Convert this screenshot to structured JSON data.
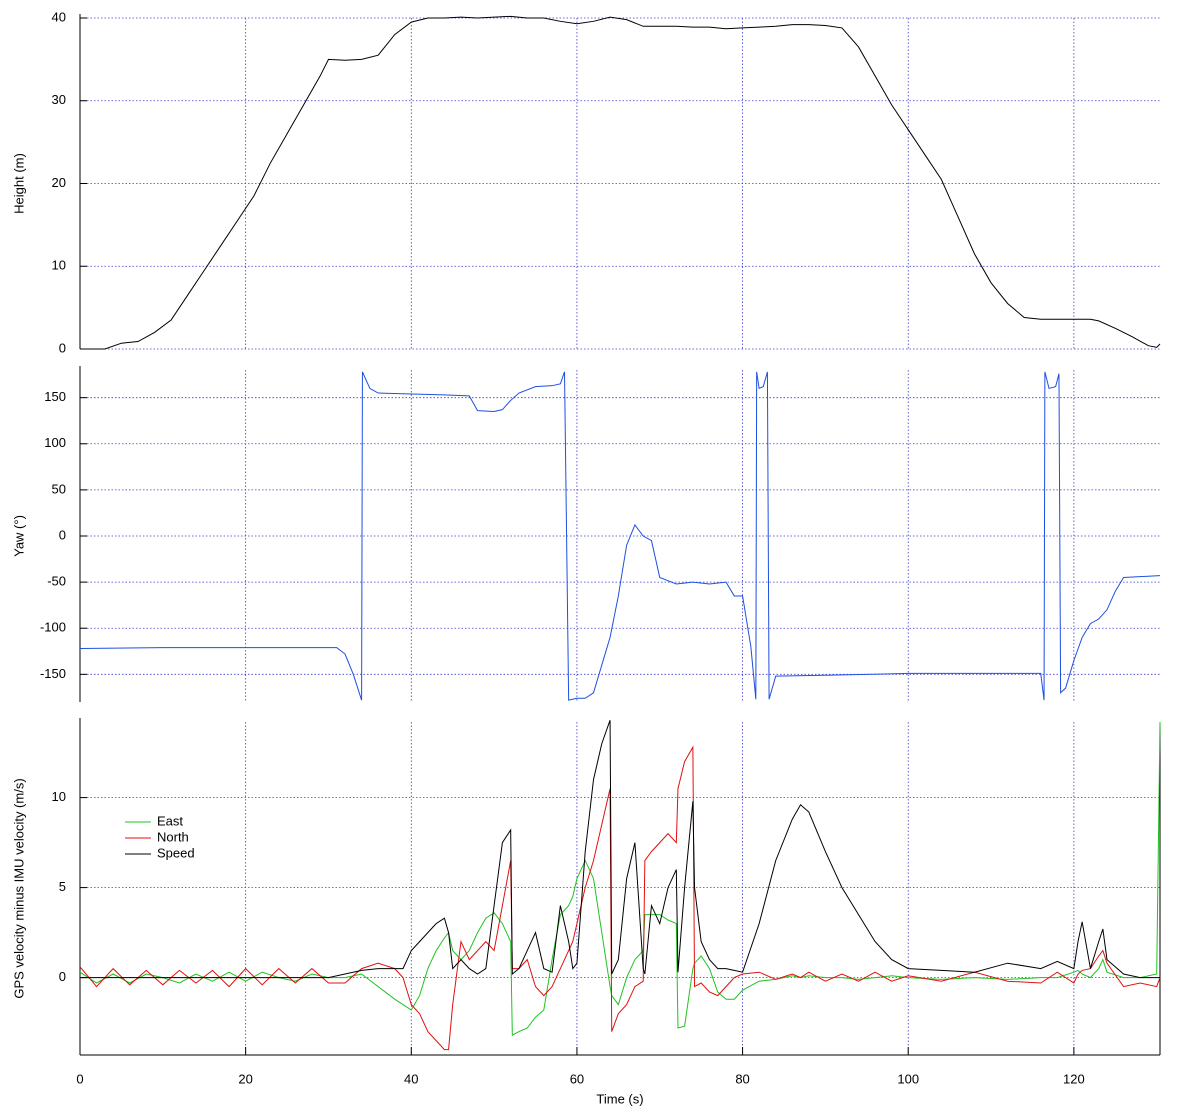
{
  "chart_data": [
    {
      "type": "line",
      "ylabel": "Height (m)",
      "x": [
        0,
        3,
        5,
        7,
        9,
        11,
        13,
        15,
        17,
        19,
        21,
        23,
        25,
        27,
        29,
        30,
        32,
        34,
        36,
        38,
        40,
        42,
        44,
        46,
        48,
        50,
        52,
        54,
        56,
        58,
        60,
        62,
        64,
        66,
        68,
        70,
        72,
        74,
        76,
        78,
        80,
        82,
        84,
        86,
        88,
        90,
        92,
        94,
        96,
        98,
        100,
        102,
        104,
        106,
        108,
        110,
        112,
        114,
        116,
        118,
        120,
        122,
        123,
        125,
        127,
        129,
        130,
        130.4
      ],
      "series": [
        {
          "color": "#000000",
          "values": [
            0,
            0,
            0.7,
            0.9,
            2,
            3.5,
            6.5,
            9.5,
            12.5,
            15.5,
            18.5,
            22.5,
            26,
            29.5,
            33,
            35,
            34.9,
            35,
            35.5,
            38,
            39.5,
            40,
            40,
            40.1,
            40,
            40.1,
            40.2,
            40,
            40,
            39.6,
            39.3,
            39.6,
            40.1,
            39.8,
            39,
            39,
            39,
            38.9,
            38.9,
            38.7,
            38.8,
            38.9,
            39,
            39.2,
            39.2,
            39.1,
            38.8,
            36.5,
            33,
            29.5,
            26.5,
            23.5,
            20.5,
            16,
            11.5,
            8,
            5.5,
            3.8,
            3.6,
            3.6,
            3.6,
            3.6,
            3.4,
            2.5,
            1.5,
            0.4,
            0.2,
            0.6
          ]
        }
      ],
      "xlim": [
        0,
        130.4
      ],
      "xticks": [
        0,
        20,
        40,
        60,
        80,
        100,
        120
      ],
      "ylim": [
        0,
        40
      ],
      "yticks": [
        0,
        10,
        20,
        30,
        40
      ],
      "grid": true
    },
    {
      "type": "line",
      "ylabel": "Yaw (°)",
      "x": [
        0,
        10,
        20,
        31,
        32,
        33,
        34,
        34.1,
        35,
        36,
        40,
        44,
        47,
        48,
        50,
        51,
        52,
        53,
        55,
        57,
        58,
        58.5,
        59,
        60,
        61,
        62,
        64,
        65,
        66,
        67,
        68,
        69,
        70,
        72,
        74,
        76,
        78,
        79,
        80,
        81,
        81.6,
        81.7,
        82,
        82.5,
        83,
        83.2,
        84,
        90,
        100,
        110,
        116,
        116.4,
        116.5,
        117,
        117.8,
        118.2,
        118.4,
        119,
        120,
        121,
        122,
        123,
        124,
        125,
        126,
        128,
        130.4
      ],
      "series": [
        {
          "color": "#1f4fe0",
          "values": [
            -122,
            -121,
            -121,
            -121,
            -128,
            -150,
            -178,
            178,
            160,
            155,
            154,
            153,
            152,
            136,
            135,
            137,
            147,
            155,
            162,
            163,
            165,
            178,
            -178,
            -176,
            -176,
            -170,
            -110,
            -65,
            -10,
            12,
            0,
            -5,
            -45,
            -52,
            -50,
            -52,
            -50,
            -65,
            -65,
            -120,
            -177,
            178,
            160,
            162,
            178,
            -177,
            -152,
            -151,
            -149,
            -149,
            -149,
            -178,
            178,
            160,
            162,
            176,
            -170,
            -165,
            -135,
            -110,
            -95,
            -90,
            -80,
            -60,
            -45,
            -44,
            -43
          ]
        }
      ],
      "xlim": [
        0,
        130.4
      ],
      "xticks": [
        0,
        20,
        40,
        60,
        80,
        100,
        120
      ],
      "ylim": [
        -180,
        180
      ],
      "yticks": [
        -150,
        -100,
        -50,
        0,
        50,
        100,
        150
      ],
      "grid": true
    },
    {
      "type": "line",
      "ylabel": "GPS velocity minus IMU velocity (m/s)",
      "xlabel": "Time (s)",
      "x": [
        0,
        2,
        4,
        6,
        8,
        10,
        12,
        14,
        16,
        18,
        20,
        22,
        24,
        26,
        28,
        30,
        32,
        34,
        36,
        38,
        39,
        40,
        41,
        42,
        43,
        44,
        44.5,
        45,
        46,
        47,
        48,
        49,
        50,
        51,
        52,
        52.2,
        53,
        54,
        55,
        56,
        57,
        58,
        59,
        59.5,
        60,
        61,
        62,
        63,
        64,
        64.2,
        65,
        66,
        67,
        68,
        68.2,
        69,
        70,
        71,
        72,
        72.2,
        73,
        74,
        74.2,
        75,
        76,
        77,
        78,
        79,
        80,
        82,
        84,
        86,
        87,
        88,
        90,
        92,
        94,
        96,
        98,
        100,
        104,
        108,
        112,
        116,
        118,
        120,
        120.5,
        121,
        122,
        123,
        123.5,
        124,
        126,
        128,
        130,
        130.4
      ],
      "series": [
        {
          "name": "East",
          "color": "#1fc21f",
          "values": [
            0.3,
            -0.3,
            0.2,
            -0.3,
            0.2,
            0,
            -0.3,
            0.2,
            -0.2,
            0.3,
            -0.2,
            0.3,
            0,
            -0.2,
            0.2,
            0,
            0,
            0.2,
            -0.5,
            -1.2,
            -1.5,
            -1.8,
            -1,
            0.5,
            1.5,
            2.2,
            2.5,
            1.5,
            1,
            1.5,
            2.5,
            3.3,
            3.6,
            3,
            2,
            -3.2,
            -3,
            -2.8,
            -2.2,
            -1.8,
            1,
            3.5,
            4,
            4.5,
            5.5,
            6.5,
            5.5,
            2.5,
            -0.5,
            -1,
            -1.5,
            0,
            1,
            1.5,
            3.5,
            3.5,
            3.5,
            3.2,
            3,
            -2.8,
            -2.7,
            0.5,
            0.8,
            1.2,
            0.5,
            -0.8,
            -1.2,
            -1.2,
            -0.7,
            -0.2,
            -0.1,
            0.1,
            0,
            0.1,
            0,
            0,
            -0.1,
            0,
            0.1,
            0,
            -0.1,
            0,
            -0.1,
            0,
            0,
            0.3,
            0.4,
            0.2,
            0,
            0.5,
            1,
            0.3,
            0,
            0,
            0.2,
            14.2
          ]
        },
        {
          "name": "North",
          "color": "#e01010",
          "values": [
            0.6,
            -0.5,
            0.5,
            -0.4,
            0.4,
            -0.4,
            0.4,
            -0.3,
            0.4,
            -0.5,
            0.5,
            -0.4,
            0.5,
            -0.3,
            0.5,
            -0.3,
            -0.3,
            0.5,
            0.8,
            0.5,
            0,
            -1.5,
            -2,
            -3,
            -3.5,
            -4,
            -4,
            -1.5,
            2,
            1,
            1.5,
            2,
            1.5,
            4,
            6.5,
            0.5,
            0.5,
            1,
            -0.5,
            -1,
            -0.5,
            0.5,
            1.5,
            2,
            3,
            5,
            6.5,
            8.5,
            10.5,
            -3,
            -2,
            -1.5,
            -0.5,
            -0.2,
            6.5,
            7,
            7.5,
            8,
            7.5,
            10.5,
            12,
            12.8,
            -0.5,
            -0.3,
            -0.8,
            -1,
            -0.5,
            0,
            0.2,
            0.3,
            -0.1,
            0.2,
            0,
            0.3,
            -0.2,
            0.2,
            -0.2,
            0.3,
            -0.2,
            0.1,
            -0.2,
            0.3,
            -0.2,
            -0.3,
            0.3,
            -0.3,
            0.2,
            0.4,
            0.5,
            1.2,
            1.5,
            0.8,
            -0.5,
            -0.3,
            -0.5,
            0
          ]
        },
        {
          "name": "Speed",
          "color": "#000000",
          "values": [
            0,
            0,
            0,
            0,
            0,
            0,
            0,
            0,
            0,
            0,
            0,
            0,
            0,
            0,
            0,
            0,
            0.2,
            0.4,
            0.5,
            0.5,
            0.5,
            1.5,
            2,
            2.5,
            3,
            3.3,
            2.5,
            0.5,
            1,
            0.5,
            0.2,
            0.5,
            4,
            7.5,
            8.2,
            0.2,
            0.5,
            1.5,
            2.5,
            0.5,
            0.3,
            4,
            2,
            0.5,
            0.8,
            7,
            11,
            13,
            14.3,
            0.2,
            1,
            5.5,
            7.5,
            0.5,
            0.2,
            4,
            3,
            5,
            6,
            0.3,
            5,
            9.8,
            5,
            2,
            1,
            0.5,
            0.5,
            0.4,
            0.3,
            3,
            6.5,
            8.8,
            9.6,
            9.2,
            7,
            5,
            3.5,
            2,
            1,
            0.5,
            0.4,
            0.3,
            0.8,
            0.5,
            0.9,
            0.5,
            2,
            3.1,
            0.5,
            2,
            2.7,
            1,
            0.2,
            0,
            0,
            0
          ]
        }
      ],
      "legend": "upper left",
      "xlim": [
        0,
        130.4
      ],
      "xticks": [
        0,
        20,
        40,
        60,
        80,
        100,
        120
      ],
      "ylim": [
        -4.3,
        14.2
      ],
      "yticks": [
        0,
        5,
        10
      ],
      "grid": true
    }
  ]
}
